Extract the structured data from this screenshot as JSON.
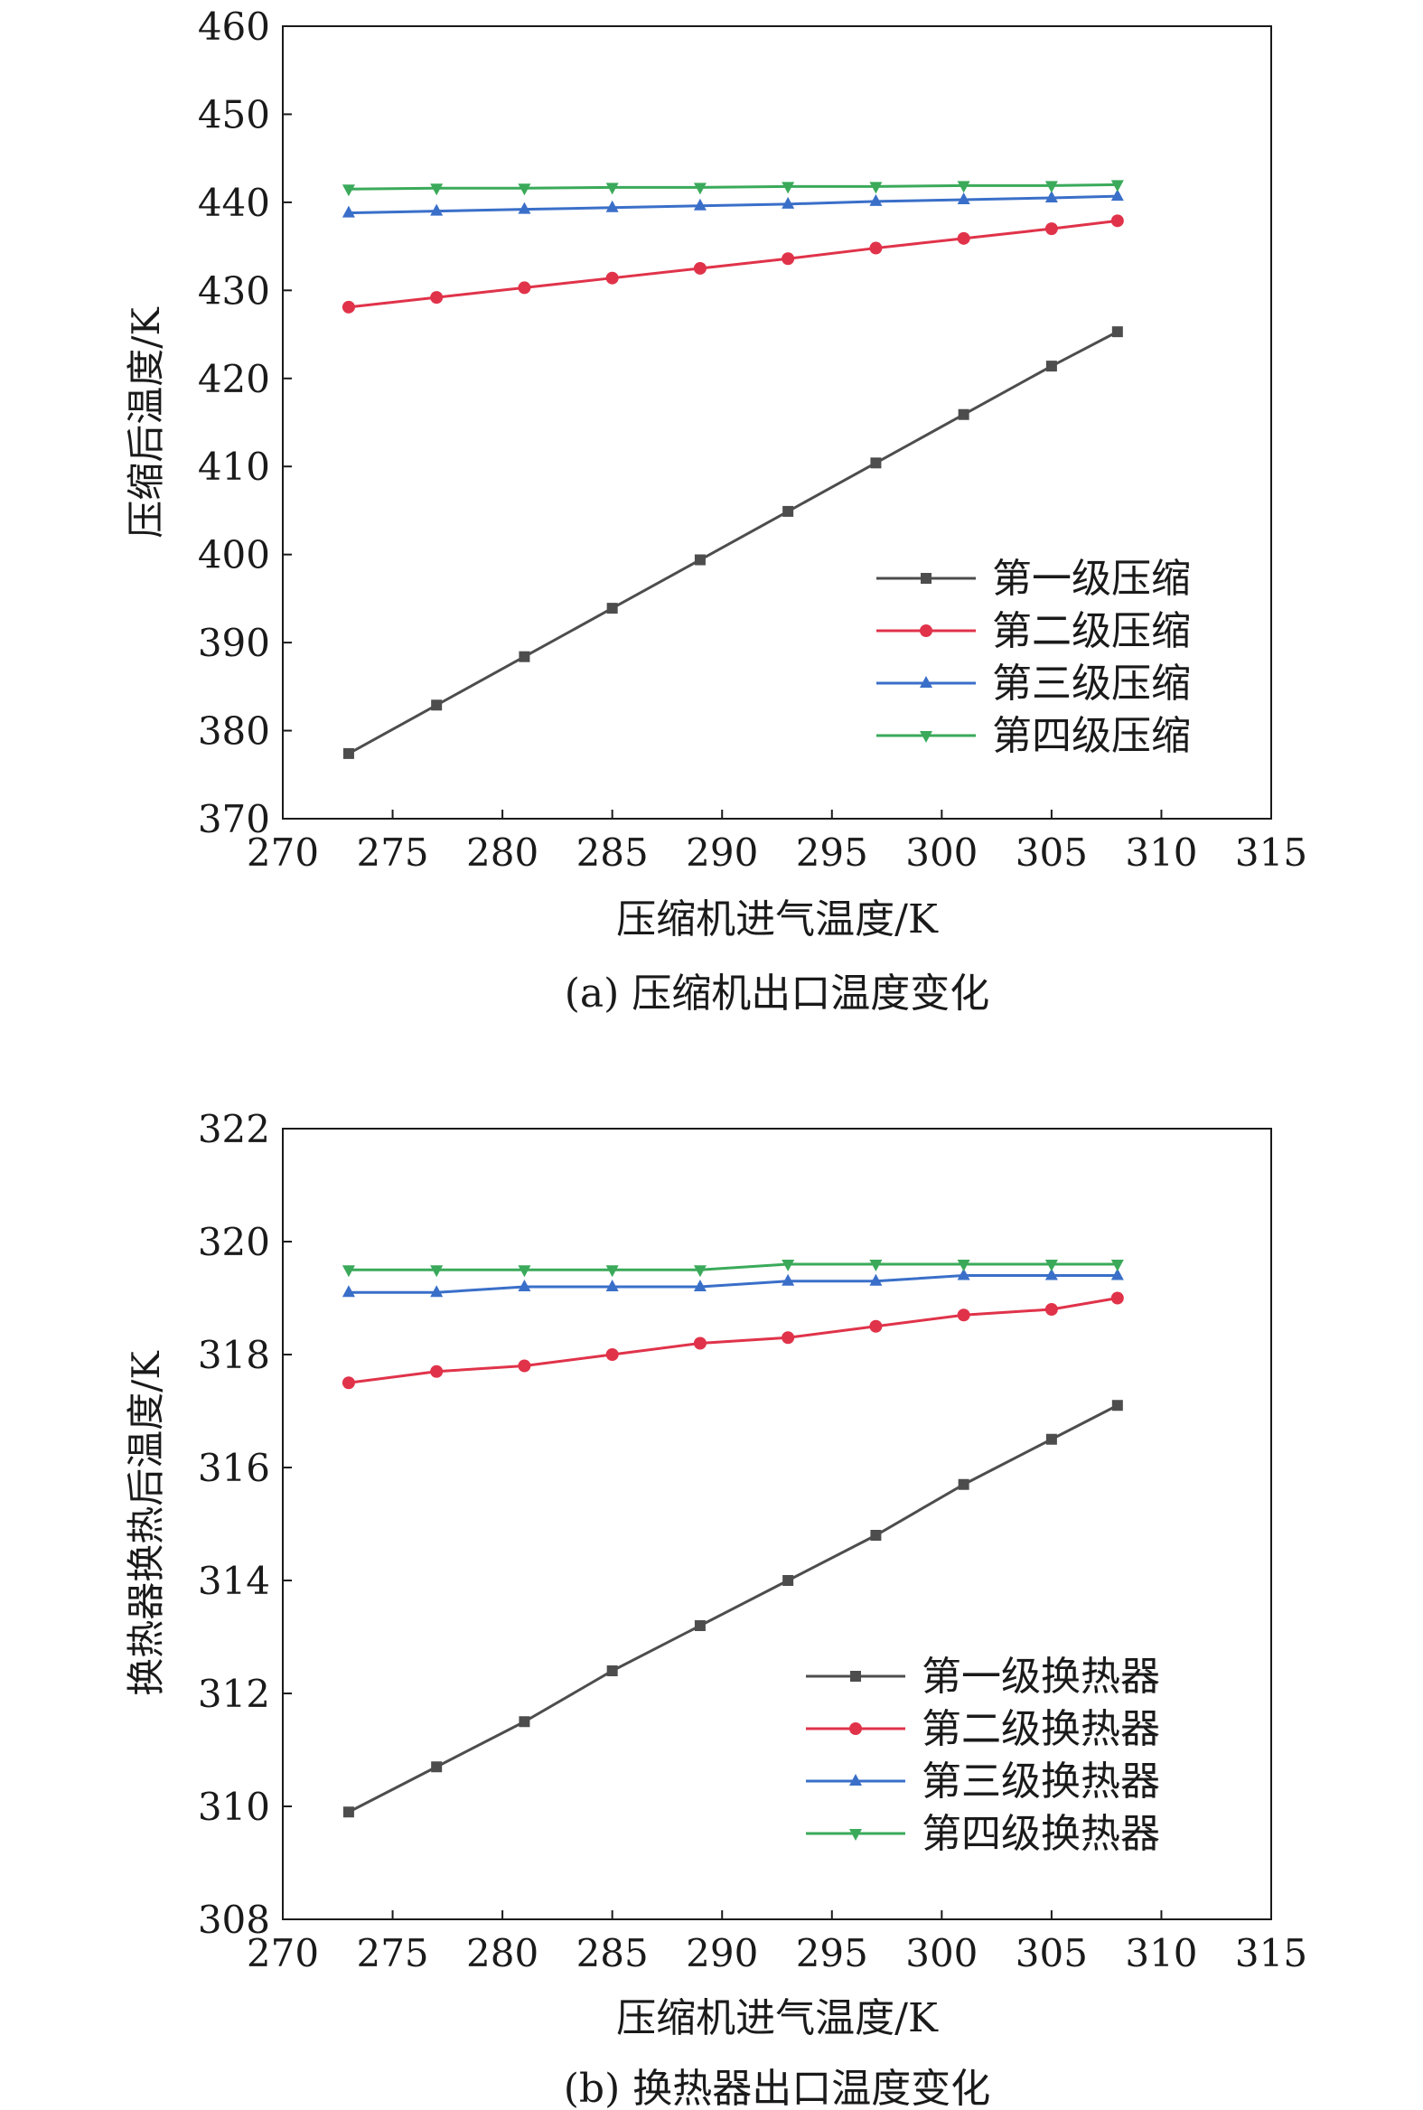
{
  "chart_data": [
    {
      "type": "line",
      "caption": "(a) 压缩机出口温度变化",
      "xlabel": "压缩机进气温度/K",
      "ylabel": "压缩后温度/K",
      "xlim": [
        270,
        315
      ],
      "ylim": [
        370,
        460
      ],
      "x_ticks": [
        "270",
        "275",
        "280",
        "285",
        "290",
        "295",
        "300",
        "305",
        "310",
        "315"
      ],
      "y_ticks": [
        "370",
        "380",
        "390",
        "400",
        "410",
        "420",
        "430",
        "440",
        "450",
        "460"
      ],
      "grid": false,
      "legend": "center-right",
      "x": [
        273,
        277,
        281,
        285,
        289,
        293,
        297,
        301,
        305,
        308
      ],
      "series": [
        {
          "name": "第一级压缩",
          "color": "#4d4d4d",
          "marker": "square",
          "values": [
            377.4,
            382.9,
            388.4,
            393.9,
            399.4,
            404.9,
            410.4,
            415.9,
            421.4,
            425.3
          ]
        },
        {
          "name": "第二级压缩",
          "color": "#e0334a",
          "marker": "circle",
          "values": [
            428.1,
            429.2,
            430.3,
            431.4,
            432.5,
            433.6,
            434.8,
            435.9,
            437.0,
            437.9
          ]
        },
        {
          "name": "第三级压缩",
          "color": "#3a6fc9",
          "marker": "triangle-up",
          "values": [
            438.8,
            439.0,
            439.2,
            439.4,
            439.6,
            439.8,
            440.1,
            440.3,
            440.5,
            440.7
          ]
        },
        {
          "name": "第四级压缩",
          "color": "#3aaa5a",
          "marker": "triangle-down",
          "values": [
            441.5,
            441.6,
            441.6,
            441.7,
            441.7,
            441.8,
            441.8,
            441.9,
            441.9,
            442.0
          ]
        }
      ]
    },
    {
      "type": "line",
      "caption": "(b) 换热器出口温度变化",
      "xlabel": "压缩机进气温度/K",
      "ylabel": "换热器换热后温度/K",
      "xlim": [
        270,
        315
      ],
      "ylim": [
        308,
        322
      ],
      "x_ticks": [
        "270",
        "275",
        "280",
        "285",
        "290",
        "295",
        "300",
        "305",
        "310",
        "315"
      ],
      "y_ticks": [
        "308",
        "310",
        "312",
        "314",
        "316",
        "318",
        "320",
        "322"
      ],
      "grid": false,
      "legend": "bottom-right",
      "x": [
        273,
        277,
        281,
        285,
        289,
        293,
        297,
        301,
        305,
        308
      ],
      "series": [
        {
          "name": "第一级换热器",
          "color": "#4d4d4d",
          "marker": "square",
          "values": [
            309.9,
            310.7,
            311.5,
            312.4,
            313.2,
            314.0,
            314.8,
            315.7,
            316.5,
            317.1
          ]
        },
        {
          "name": "第二级换热器",
          "color": "#e0334a",
          "marker": "circle",
          "values": [
            317.5,
            317.7,
            317.8,
            318.0,
            318.2,
            318.3,
            318.5,
            318.7,
            318.8,
            319.0
          ]
        },
        {
          "name": "第三级换热器",
          "color": "#3a6fc9",
          "marker": "triangle-up",
          "values": [
            319.1,
            319.1,
            319.2,
            319.2,
            319.2,
            319.3,
            319.3,
            319.4,
            319.4,
            319.4
          ]
        },
        {
          "name": "第四级换热器",
          "color": "#3aaa5a",
          "marker": "triangle-down",
          "values": [
            319.5,
            319.5,
            319.5,
            319.5,
            319.5,
            319.6,
            319.6,
            319.6,
            319.6,
            319.6
          ]
        }
      ]
    }
  ]
}
